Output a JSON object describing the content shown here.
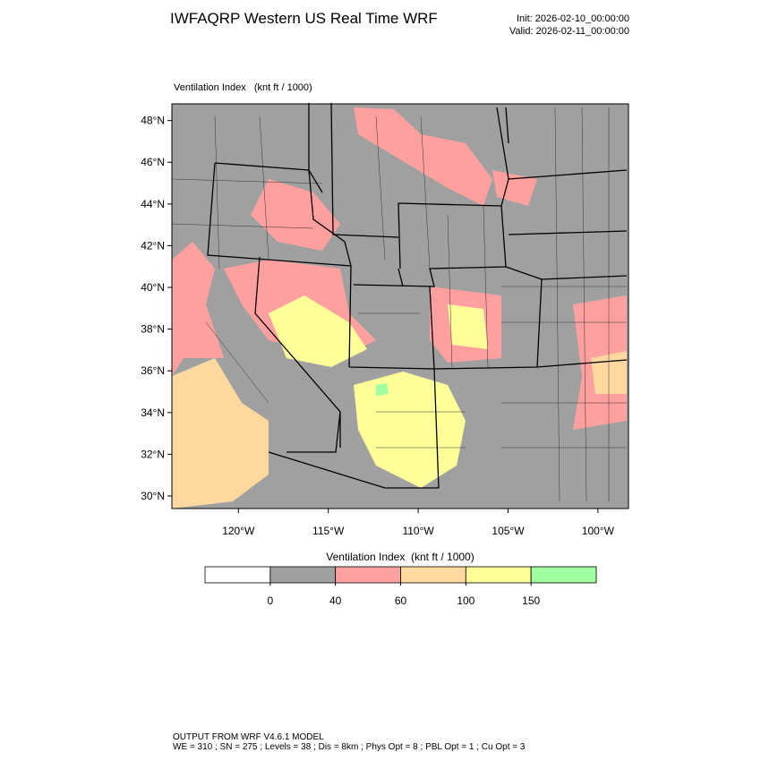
{
  "header": {
    "title": "IWFAQRP Western US Real Time WRF",
    "init": "Init: 2026-02-10_00:00:00",
    "valid": "Valid: 2026-02-11_00:00:00"
  },
  "map": {
    "field_label": "Ventilation Index   (knt ft / 1000)",
    "xlim": [
      -123.7,
      -98.3
    ],
    "ylim": [
      29.4,
      48.8
    ],
    "xticks": [
      {
        "value": -120,
        "label": "120°W"
      },
      {
        "value": -115,
        "label": "115°W"
      },
      {
        "value": -110,
        "label": "110°W"
      },
      {
        "value": -105,
        "label": "105°W"
      },
      {
        "value": -100,
        "label": "100°W"
      }
    ],
    "yticks": [
      {
        "value": 30,
        "label": "30°N"
      },
      {
        "value": 32,
        "label": "32°N"
      },
      {
        "value": 34,
        "label": "34°N"
      },
      {
        "value": 36,
        "label": "36°N"
      },
      {
        "value": 38,
        "label": "38°N"
      },
      {
        "value": 40,
        "label": "40°N"
      },
      {
        "value": 42,
        "label": "42°N"
      },
      {
        "value": 44,
        "label": "44°N"
      },
      {
        "value": 46,
        "label": "46°N"
      },
      {
        "value": 48,
        "label": "48°N"
      }
    ]
  },
  "colorbar": {
    "title": "Ventilation Index  (knt ft / 1000)",
    "colors": [
      "#ffffff",
      "#a0a0a0",
      "#ffa0a0",
      "#ffd8a0",
      "#ffff99",
      "#a0ffa0"
    ],
    "ticks": [
      0,
      40,
      60,
      100,
      150
    ]
  },
  "footer": {
    "lines": [
      "OUTPUT FROM WRF V4.6.1 MODEL",
      "WE = 310 ; SN = 275 ; Levels = 38 ; Dis = 8km ; Phys Opt = 8 ; PBL Opt = 1 ; Cu Opt = 3"
    ]
  }
}
